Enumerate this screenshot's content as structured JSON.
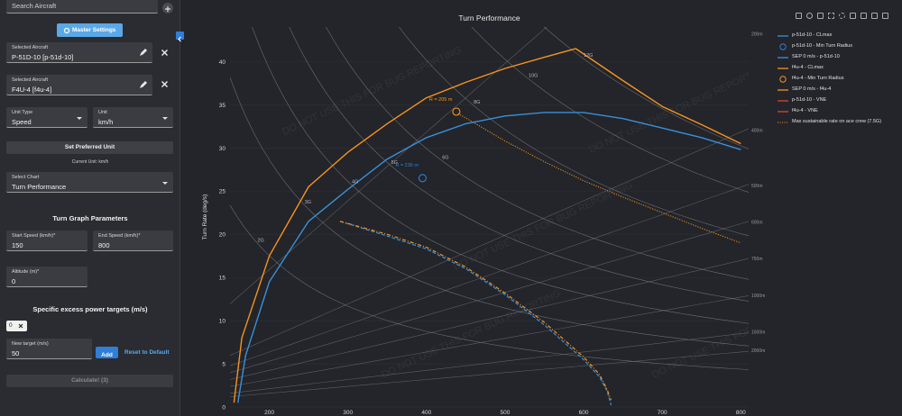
{
  "sidebar": {
    "search_placeholder": "Search Aircraft",
    "master_settings_label": "Master Settings",
    "aircraft": [
      {
        "label": "Selected Aircraft",
        "value": "P-51D-10 [p-51d-10]"
      },
      {
        "label": "Selected Aircraft",
        "value": "F4U-4 [f4u-4]"
      }
    ],
    "unit_type": {
      "label": "Unit Type",
      "value": "Speed"
    },
    "unit": {
      "label": "Unit",
      "value": "km/h"
    },
    "set_preferred_label": "Set Preferred Unit",
    "current_unit": "Current Unit: km/h",
    "select_chart": {
      "label": "Select Chart",
      "value": "Turn Performance"
    },
    "turn_params_title": "Turn Graph Parameters",
    "start_speed": {
      "label": "Start Speed (km/h)*",
      "value": "150"
    },
    "end_speed": {
      "label": "End Speed (km/h)*",
      "value": "800"
    },
    "altitude": {
      "label": "Altitude (m)*",
      "value": "0"
    },
    "sep_title": "Specific excess power targets (m/s)",
    "sep_chip": "0",
    "new_target": {
      "label": "New target (m/s)",
      "value": "50"
    },
    "add_label": "Add",
    "reset_label": "Reset to Default",
    "calculate_label": "Calculate! (3)",
    "colors": {
      "accent": "#2f7ed8",
      "panel": "#2a2c31",
      "field": "#3a3c42"
    }
  },
  "chart_data": {
    "type": "line",
    "title": "Turn Performance",
    "xlabel": "",
    "ylabel": "Turn Rate (deg/s)",
    "xlim": [
      150,
      810
    ],
    "ylim": [
      0,
      44
    ],
    "xticks": [
      200,
      300,
      400,
      500,
      600,
      700,
      800
    ],
    "yticks": [
      0,
      5,
      10,
      15,
      20,
      25,
      30,
      35,
      40
    ],
    "watermark": "DO NOT USE THIS FOR BUG REPORTING",
    "g_lines": [
      "2G",
      "3G",
      "4G",
      "5G",
      "6G",
      "8G",
      "10G",
      "12G"
    ],
    "radius_lines": [
      "200m",
      "400m",
      "500m",
      "600m",
      "750m",
      "1000m",
      "1500m",
      "2000m"
    ],
    "annotations": [
      {
        "text": "R = 205 m",
        "color": "#f7931e"
      },
      {
        "text": "R = 236 m",
        "color": "#2f7ed8"
      }
    ],
    "series": [
      {
        "name": "p-51d-10 - CLmax",
        "color": "#3a8fd8",
        "x": [
          160,
          170,
          200,
          250,
          300,
          350,
          400,
          450,
          500,
          550,
          600,
          650,
          700,
          750,
          800
        ],
        "y": [
          0.5,
          6,
          14.5,
          21.5,
          25.2,
          28.7,
          31.2,
          32.8,
          33.7,
          34.1,
          34.1,
          33.4,
          32.3,
          31.2,
          29.8
        ]
      },
      {
        "name": "f4u-4 - CLmax",
        "color": "#f7931e",
        "x": [
          155,
          165,
          200,
          250,
          300,
          350,
          400,
          450,
          500,
          550,
          590,
          650,
          700,
          750,
          800
        ],
        "y": [
          0.5,
          8,
          17.5,
          25.5,
          29.5,
          32.8,
          35.8,
          37.6,
          39.2,
          40.5,
          41.5,
          37.8,
          34.8,
          32.7,
          30.5
        ]
      },
      {
        "name": "SEP 0 m/s - p-51d-10",
        "color": "#3a8fd8",
        "x": [
          290,
          350,
          400,
          450,
          500,
          550,
          600,
          620,
          630,
          635
        ],
        "y": [
          21.5,
          19.8,
          18.3,
          16.0,
          13.0,
          9.5,
          5.5,
          3.5,
          1.8,
          0.2
        ]
      },
      {
        "name": "SEP 0 m/s - f4u-4",
        "color": "#f7931e",
        "x": [
          290,
          350,
          400,
          450,
          500,
          550,
          600,
          620,
          630,
          635
        ],
        "y": [
          21.5,
          20.0,
          18.5,
          16.2,
          13.2,
          9.8,
          5.8,
          3.8,
          2.0,
          0.8
        ]
      },
      {
        "name": "Max sustainable rate on ace crew (7.5G)",
        "color": "#f7931e",
        "x": [
          440,
          500,
          550,
          600,
          650,
          700,
          750,
          800
        ],
        "y": [
          34,
          30.8,
          28.4,
          26.2,
          24.3,
          22.5,
          20.7,
          19.0
        ]
      }
    ],
    "markers": [
      {
        "name": "p-51d-10 - Min Turn Radius",
        "x": 395,
        "y": 26.5,
        "color": "#2f7ed8"
      },
      {
        "name": "f4u-4 - Min Turn Radius",
        "x": 438,
        "y": 34.2,
        "color": "#f7931e"
      }
    ],
    "legend": [
      {
        "name": "p-51d-10 - CLmax",
        "color": "#3a8fd8",
        "style": "line"
      },
      {
        "name": "p-51d-10 - Min Turn Radius",
        "color": "#2f7ed8",
        "style": "circle"
      },
      {
        "name": "SEP 0 m/s - p-51d-10",
        "color": "#3a8fd8",
        "style": "line"
      },
      {
        "name": "f4u-4 - CLmax",
        "color": "#f7931e",
        "style": "line"
      },
      {
        "name": "f4u-4 - Min Turn Radius",
        "color": "#f7931e",
        "style": "circle"
      },
      {
        "name": "SEP 0 m/s - f4u-4",
        "color": "#f7931e",
        "style": "line"
      },
      {
        "name": "p-51d-10 - VNE",
        "color": "#e0403a",
        "style": "line"
      },
      {
        "name": "f4u-4 - VNE",
        "color": "#e0403a",
        "style": "line"
      },
      {
        "name": "Max sustainable rate on ace crew (7.5G)",
        "color": "#f7931e",
        "style": "dot"
      }
    ],
    "legend_position": "top-right"
  }
}
